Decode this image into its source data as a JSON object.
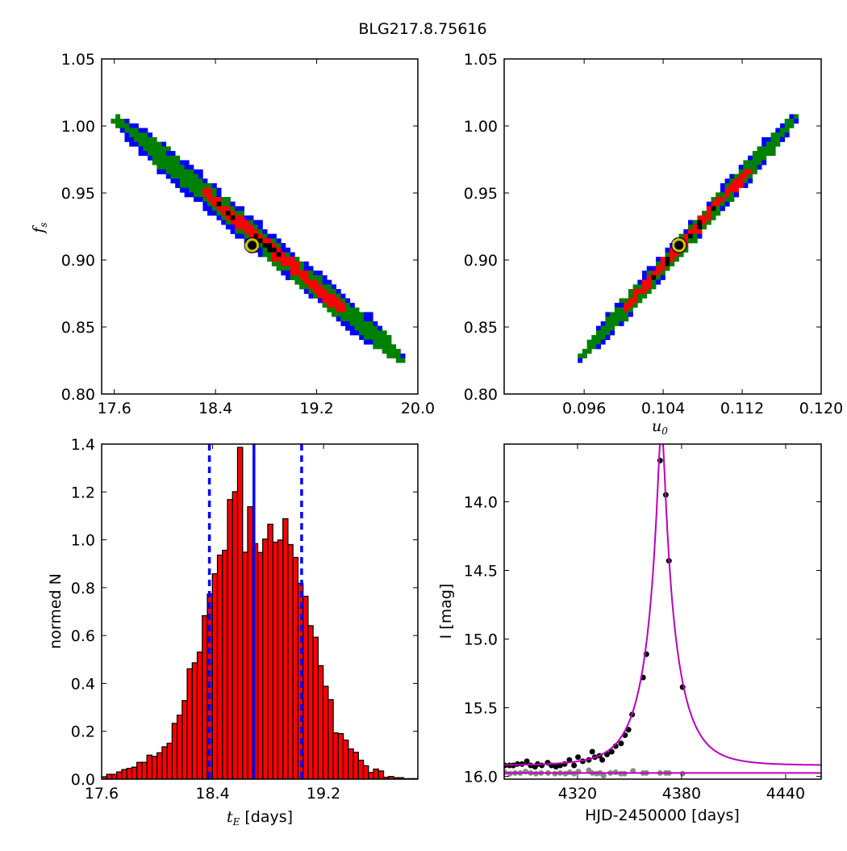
{
  "title": "BLG217.8.75616",
  "chart_data": [
    {
      "type": "heatmap",
      "panel": "top-left",
      "xlabel": "",
      "ylabel_main": "f",
      "ylabel_sub": "s",
      "xlim": [
        17.5,
        20.0
      ],
      "ylim": [
        0.8,
        1.05
      ],
      "xticks": [
        "17.6",
        "18.4",
        "19.2",
        "20.0"
      ],
      "yticks": [
        "0.80",
        "0.85",
        "0.90",
        "0.95",
        "1.00",
        "1.05"
      ],
      "ridge_start": [
        17.62,
        1.005
      ],
      "ridge_end": [
        19.88,
        0.826
      ],
      "best_fit": [
        18.69,
        0.911
      ],
      "level_colors": [
        "#0000ff",
        "#008000",
        "#ff0000",
        "#000000"
      ],
      "marker_color": "#c8c000"
    },
    {
      "type": "heatmap",
      "panel": "top-right",
      "xlabel_main": "u",
      "xlabel_sub": "0",
      "xlim": [
        0.0879,
        0.12
      ],
      "ylim": [
        0.8,
        1.05
      ],
      "xticks": [
        "0.096",
        "0.104",
        "0.112",
        "0.120"
      ],
      "yticks": [
        "0.80",
        "0.85",
        "0.90",
        "0.95",
        "1.00",
        "1.05"
      ],
      "ridge_start": [
        0.0955,
        0.826
      ],
      "ridge_end": [
        0.1175,
        1.007
      ],
      "best_fit": [
        0.1056,
        0.911
      ],
      "level_colors": [
        "#0000ff",
        "#008000",
        "#ff0000",
        "#000000"
      ],
      "marker_color": "#c8c000"
    },
    {
      "type": "bar",
      "panel": "bottom-left",
      "xlabel_main": "t",
      "xlabel_sub": "E",
      "xlabel_rest": " [days]",
      "ylabel": "normed N",
      "xlim": [
        17.6,
        19.88
      ],
      "ylim": [
        0.0,
        1.4
      ],
      "xticks": [
        "17.6",
        "18.4",
        "19.2"
      ],
      "yticks": [
        "0.0",
        "0.2",
        "0.4",
        "0.6",
        "0.8",
        "1.0",
        "1.2",
        "1.4"
      ],
      "bin_start": 17.6,
      "bin_width": 0.0363,
      "values": [
        0.01,
        0.02,
        0.02,
        0.03,
        0.04,
        0.045,
        0.05,
        0.07,
        0.07,
        0.1,
        0.095,
        0.11,
        0.135,
        0.15,
        0.233,
        0.267,
        0.328,
        0.461,
        0.486,
        0.531,
        0.683,
        0.773,
        0.858,
        0.936,
        0.956,
        1.168,
        1.201,
        1.386,
        0.948,
        1.138,
        0.984,
        0.947,
        1.003,
        1.065,
        0.99,
        0.999,
        1.088,
        0.98,
        0.926,
        0.818,
        0.764,
        0.641,
        0.593,
        0.474,
        0.388,
        0.332,
        0.193,
        0.19,
        0.163,
        0.126,
        0.112,
        0.079,
        0.056,
        0.028,
        0.042,
        0.034,
        0.008,
        0.011,
        0.006,
        0.006,
        0.002,
        0.002,
        0.002
      ],
      "bar_color": "#ff0000",
      "median": 18.698,
      "lower": 18.377,
      "upper": 19.042,
      "line_color": "#0000ff"
    },
    {
      "type": "scatter",
      "panel": "bottom-right",
      "xlabel": "HJD-2450000 [days]",
      "ylabel": "I [mag]",
      "xlim": [
        4277.7,
        4460.5
      ],
      "ylim": [
        16.02,
        13.58
      ],
      "xticks": [
        "4320",
        "4380",
        "4440"
      ],
      "yticks": [
        "14.0",
        "14.5",
        "15.0",
        "15.5",
        "16.0"
      ],
      "model": {
        "t0": 4368.4,
        "u0": 0.1056,
        "tE": 18.7,
        "baseline": 15.92,
        "color": "#bb00bb"
      },
      "source_line": 15.975,
      "data_color": "#000000",
      "residual_color": "#888888",
      "data": [
        [
          4367.6,
          13.7
        ],
        [
          4370.9,
          13.95
        ],
        [
          4372.7,
          14.43
        ],
        [
          4359.7,
          15.11
        ],
        [
          4357.8,
          15.28
        ],
        [
          4380.6,
          15.35
        ],
        [
          4351.5,
          15.55
        ],
        [
          4349.4,
          15.66
        ],
        [
          4347.4,
          15.7
        ],
        [
          4345.1,
          15.76
        ],
        [
          4342.0,
          15.78
        ],
        [
          4339.7,
          15.82
        ],
        [
          4337.0,
          15.84
        ],
        [
          4334.3,
          15.88
        ],
        [
          4332.7,
          15.85
        ],
        [
          4330.0,
          15.86
        ],
        [
          4328.5,
          15.82
        ],
        [
          4326.5,
          15.88
        ],
        [
          4323.0,
          15.89
        ],
        [
          4320.3,
          15.86
        ],
        [
          4318.0,
          15.92
        ],
        [
          4315.3,
          15.88
        ],
        [
          4312.6,
          15.91
        ],
        [
          4310.0,
          15.92
        ],
        [
          4307.6,
          15.93
        ],
        [
          4305.0,
          15.92
        ],
        [
          4302.8,
          15.9
        ],
        [
          4299.4,
          15.92
        ],
        [
          4297.0,
          15.91
        ],
        [
          4295.5,
          15.93
        ],
        [
          4293.0,
          15.92
        ],
        [
          4290.8,
          15.89
        ],
        [
          4288.0,
          15.91
        ],
        [
          4285.4,
          15.91
        ],
        [
          4283.0,
          15.92
        ],
        [
          4280.8,
          15.92
        ],
        [
          4278.1,
          15.92
        ]
      ],
      "residuals": [
        [
          4278,
          15.97
        ],
        [
          4281,
          15.98
        ],
        [
          4284,
          15.975
        ],
        [
          4287,
          15.975
        ],
        [
          4290,
          15.965
        ],
        [
          4293,
          15.975
        ],
        [
          4296,
          15.98
        ],
        [
          4299,
          15.975
        ],
        [
          4303,
          15.975
        ],
        [
          4307,
          15.98
        ],
        [
          4310,
          15.975
        ],
        [
          4313,
          15.98
        ],
        [
          4315.5,
          15.97
        ],
        [
          4318,
          15.98
        ],
        [
          4320.5,
          15.965
        ],
        [
          4326.5,
          15.955
        ],
        [
          4328.5,
          15.975
        ],
        [
          4331,
          15.98
        ],
        [
          4333,
          15.975
        ],
        [
          4335,
          15.995
        ],
        [
          4339,
          15.975
        ],
        [
          4342,
          15.97
        ],
        [
          4345,
          15.98
        ],
        [
          4347,
          15.98
        ],
        [
          4352,
          15.96
        ],
        [
          4357.8,
          15.975
        ],
        [
          4359.7,
          15.975
        ],
        [
          4367.6,
          15.975
        ],
        [
          4370.9,
          15.975
        ],
        [
          4372.7,
          15.975
        ],
        [
          4380.6,
          15.98
        ]
      ]
    }
  ]
}
